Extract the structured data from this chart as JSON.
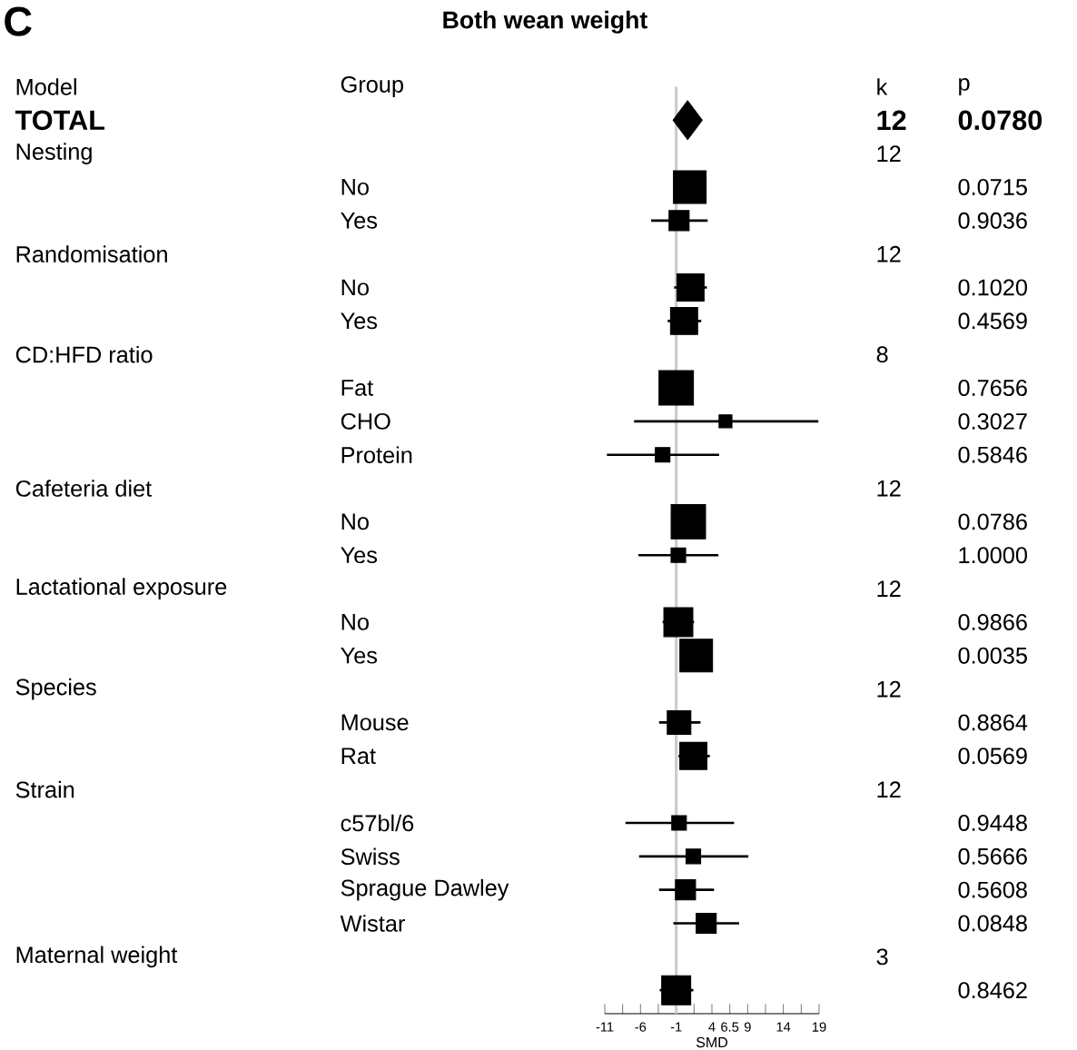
{
  "chart_data": {
    "type": "scatter",
    "orientation": "horizontal",
    "title": "Both wean weight",
    "xlabel": "SMD",
    "categories": [
      null,
      null,
      "No",
      "Yes",
      null,
      "No",
      "Yes",
      null,
      "Fat",
      "CHO",
      "Protein",
      null,
      "No",
      "Yes",
      null,
      "No",
      "Yes",
      null,
      "Mouse",
      "Rat",
      null,
      "c57bl/6",
      "Swiss",
      "Sprague Dawley",
      "Wistar",
      null,
      null
    ],
    "series": [
      {
        "marker": "diamond",
        "color": "#000000",
        "values": [
          0.6,
          null,
          null,
          null,
          null,
          null,
          null,
          null,
          null,
          null,
          null,
          null,
          null,
          null,
          null,
          null,
          null,
          null,
          null,
          null,
          null,
          null,
          null,
          null,
          null,
          null,
          null
        ]
      },
      {
        "type": "bubble",
        "marker": "square",
        "color": "#000000",
        "values": [
          null,
          null,
          0.9,
          -0.6,
          null,
          1.0,
          0.1,
          null,
          -1.0,
          5.9,
          -2.9,
          null,
          0.7,
          -0.7,
          null,
          -0.7,
          1.8,
          null,
          -0.6,
          1.4,
          null,
          -0.6,
          1.4,
          0.3,
          3.2,
          null,
          -1.0
        ],
        "errors": [
          null,
          null,
          null,
          [
            -4.5,
            3.4
          ],
          null,
          [
            -1.3,
            3.3
          ],
          [
            -2.2,
            2.5
          ],
          null,
          null,
          [
            -6.9,
            18.9
          ],
          [
            -10.7,
            5.0
          ],
          null,
          null,
          [
            -6.3,
            4.9
          ],
          null,
          [
            -2.9,
            1.5
          ],
          null,
          null,
          [
            -3.4,
            2.4
          ],
          [
            -0.7,
            3.7
          ],
          null,
          [
            -8.1,
            7.1
          ],
          [
            -6.2,
            9.1
          ],
          [
            -3.4,
            4.3
          ],
          [
            -1.4,
            7.8
          ],
          null,
          [
            -3.3,
            1.4
          ]
        ],
        "sizes": [
          null,
          null,
          0.9,
          0.34,
          null,
          0.62,
          0.62,
          null,
          1,
          0.14,
          0.18,
          null,
          1,
          0.18,
          null,
          0.71,
          0.9,
          null,
          0.47,
          0.62,
          null,
          0.18,
          0.18,
          0.34,
          0.34,
          null,
          0.71
        ]
      }
    ],
    "xlim": [
      -11,
      19
    ],
    "xticks": [
      -11,
      {
        "value": -8.5,
        "label": null
      },
      -6,
      {
        "value": -3.5,
        "label": null
      },
      -1,
      {
        "value": 1.5,
        "label": null
      },
      4,
      6.5,
      9,
      {
        "value": 11.5,
        "label": null
      },
      14,
      {
        "value": 16.5,
        "label": null
      },
      19
    ],
    "ref_lines": [
      {
        "axis": "x",
        "value": -1,
        "color": "#cccccc"
      }
    ],
    "annotations": [
      "C",
      "Model",
      "Group",
      "k",
      "p",
      "TOTAL",
      "12",
      "Nesting",
      "12",
      "Randomisation",
      "12",
      "CD:HFD ratio",
      "8",
      "Cafeteria diet",
      "12",
      "Lactational exposure",
      "12",
      "Species",
      "12",
      "Strain",
      "12",
      "Maternal weight",
      "3",
      "0.0780",
      "0.0715",
      "0.9036",
      "0.1020",
      "0.4569",
      "0.7656",
      "0.3027",
      "0.5846",
      "0.0786",
      "1.0000",
      "0.9866",
      "0.0035",
      "0.8864",
      "0.0569",
      "0.9448",
      "0.5666",
      "0.5608",
      "0.0848",
      "0.8462"
    ]
  }
}
